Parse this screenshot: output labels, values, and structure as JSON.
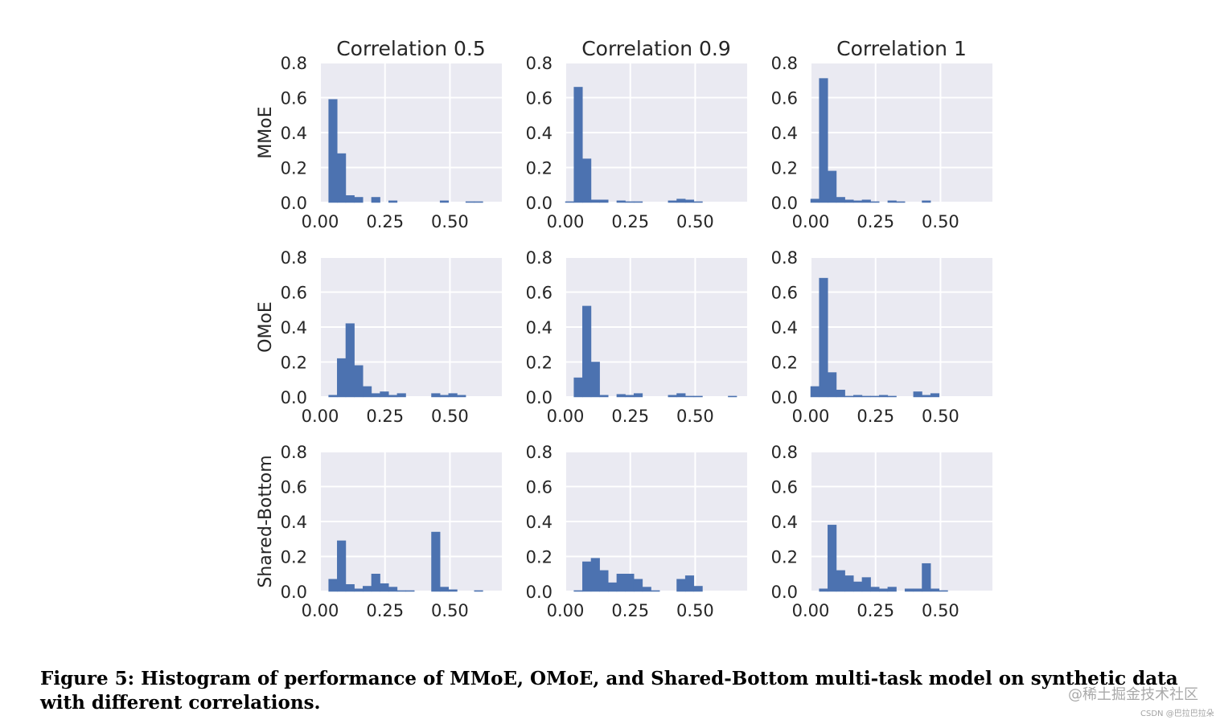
{
  "figure": {
    "caption": "Figure 5: Histogram of performance of MMoE, OMoE, and Shared-Bottom multi-task model on synthetic data with different correlations.",
    "watermark_main": "@稀土掘金技术社区",
    "watermark_small": "CSDN @巴拉巴拉朵"
  },
  "colors": {
    "bar": "#4c72b0",
    "panel": "#eaeaf2",
    "grid": "#ffffff",
    "text": "#262626"
  },
  "chart_data": {
    "type": "bar",
    "layout": "3x3 histogram grid",
    "column_titles": [
      "Correlation 0.5",
      "Correlation 0.9",
      "Correlation 1"
    ],
    "row_labels": [
      "MMoE",
      "OMoE",
      "Shared-Bottom"
    ],
    "xlim": [
      0,
      0.7
    ],
    "ylim": [
      0,
      0.8
    ],
    "x_ticks": [
      "0.00",
      "0.25",
      "0.50"
    ],
    "y_ticks": [
      "0.0",
      "0.2",
      "0.4",
      "0.6",
      "0.8"
    ],
    "bin_width": 0.033,
    "bin_start": 0.0,
    "panels": [
      {
        "model": "MMoE",
        "correlation": "0.5",
        "values": [
          0,
          0.59,
          0.28,
          0.04,
          0.03,
          0,
          0.03,
          0,
          0.01,
          0,
          0,
          0,
          0,
          0,
          0.01,
          0,
          0,
          0.005,
          0.005,
          0
        ]
      },
      {
        "model": "MMoE",
        "correlation": "0.9",
        "values": [
          0.005,
          0.66,
          0.25,
          0.015,
          0.015,
          0,
          0.01,
          0.005,
          0.005,
          0,
          0,
          0,
          0.01,
          0.02,
          0.015,
          0.005,
          0,
          0,
          0,
          0
        ]
      },
      {
        "model": "MMoE",
        "correlation": "1",
        "values": [
          0.02,
          0.71,
          0.18,
          0.03,
          0.015,
          0.01,
          0.015,
          0.005,
          0,
          0.01,
          0.005,
          0,
          0,
          0.01,
          0,
          0,
          0,
          0,
          0,
          0
        ]
      },
      {
        "model": "OMoE",
        "correlation": "0.5",
        "values": [
          0,
          0.01,
          0.22,
          0.42,
          0.18,
          0.06,
          0.02,
          0.03,
          0.01,
          0.02,
          0,
          0,
          0,
          0.02,
          0.01,
          0.02,
          0.01,
          0,
          0,
          0
        ]
      },
      {
        "model": "OMoE",
        "correlation": "0.9",
        "values": [
          0,
          0.11,
          0.52,
          0.2,
          0.01,
          0,
          0.015,
          0.01,
          0.02,
          0,
          0,
          0,
          0.01,
          0.02,
          0.005,
          0.005,
          0,
          0,
          0,
          0.005
        ]
      },
      {
        "model": "OMoE",
        "correlation": "1",
        "values": [
          0.06,
          0.68,
          0.14,
          0.04,
          0.005,
          0.01,
          0.005,
          0.005,
          0.01,
          0.005,
          0,
          0,
          0.03,
          0.01,
          0.02,
          0,
          0,
          0,
          0,
          0
        ]
      },
      {
        "model": "Shared-Bottom",
        "correlation": "0.5",
        "values": [
          0,
          0.07,
          0.29,
          0.04,
          0.015,
          0.03,
          0.1,
          0.045,
          0.025,
          0.005,
          0.005,
          0,
          0,
          0.34,
          0.025,
          0.01,
          0,
          0,
          0.005,
          0
        ]
      },
      {
        "model": "Shared-Bottom",
        "correlation": "0.9",
        "values": [
          0,
          0.005,
          0.17,
          0.19,
          0.12,
          0.05,
          0.1,
          0.1,
          0.07,
          0.025,
          0.005,
          0,
          0,
          0.07,
          0.09,
          0.03,
          0,
          0,
          0,
          0
        ]
      },
      {
        "model": "Shared-Bottom",
        "correlation": "1",
        "values": [
          0,
          0.015,
          0.38,
          0.12,
          0.09,
          0.055,
          0.08,
          0.025,
          0.015,
          0.025,
          0,
          0.015,
          0.015,
          0.16,
          0.015,
          0.005,
          0,
          0,
          0,
          0
        ]
      }
    ]
  }
}
